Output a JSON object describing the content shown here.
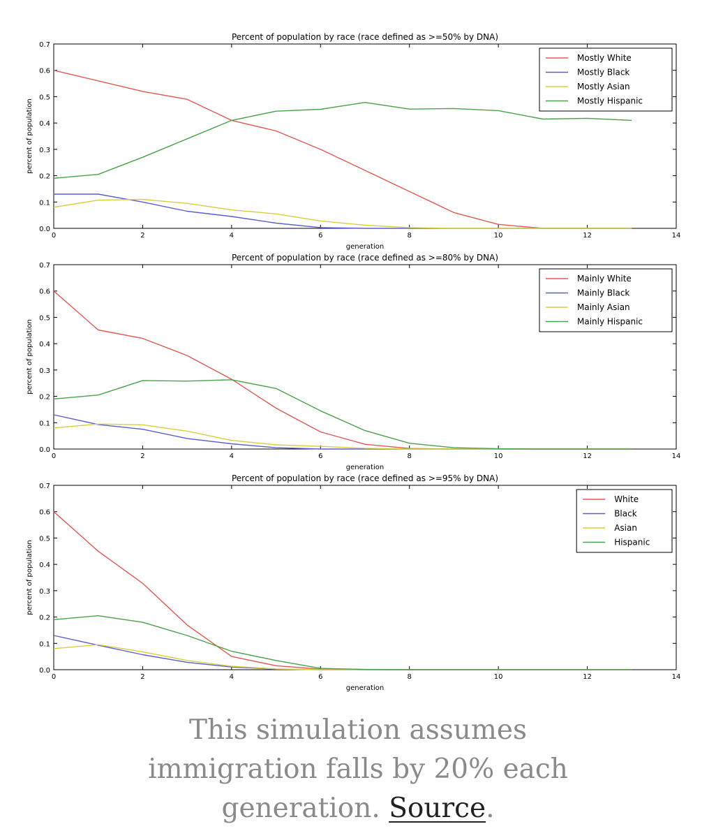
{
  "chart_data": [
    {
      "type": "line",
      "title": "Percent of population by race (race defined as >=50% by DNA)",
      "xlabel": "generation",
      "ylabel": "percent of population",
      "xlim": [
        0,
        14
      ],
      "ylim": [
        0,
        0.7
      ],
      "xticks": [
        "0",
        "2",
        "4",
        "6",
        "8",
        "10",
        "12",
        "14"
      ],
      "yticks": [
        "0.0",
        "0.1",
        "0.2",
        "0.3",
        "0.4",
        "0.5",
        "0.6",
        "0.7"
      ],
      "legend": "top-right",
      "grid": false,
      "x": [
        0,
        1,
        2,
        3,
        4,
        5,
        6,
        7,
        8,
        9,
        10,
        11,
        12,
        13
      ],
      "series": [
        {
          "name": "Mostly White",
          "color": "#e05a52",
          "values": [
            0.6,
            0.56,
            0.52,
            0.49,
            0.41,
            0.37,
            0.3,
            0.22,
            0.14,
            0.06,
            0.015,
            0.0,
            0.0,
            0.0
          ]
        },
        {
          "name": "Mostly Black",
          "color": "#5a5ecf",
          "values": [
            0.13,
            0.13,
            0.1,
            0.065,
            0.045,
            0.02,
            0.003,
            0.0,
            0.0,
            0.0,
            0.0,
            0.0,
            0.0,
            0.0
          ]
        },
        {
          "name": "Mostly Asian",
          "color": "#d9cf3e",
          "values": [
            0.08,
            0.107,
            0.11,
            0.095,
            0.07,
            0.055,
            0.028,
            0.012,
            0.003,
            0.0,
            0.0,
            0.0,
            0.0,
            0.0
          ]
        },
        {
          "name": "Mostly Hispanic",
          "color": "#4aa24a",
          "values": [
            0.19,
            0.205,
            0.27,
            0.34,
            0.41,
            0.445,
            0.452,
            0.478,
            0.453,
            0.455,
            0.447,
            0.415,
            0.418,
            0.41
          ]
        }
      ]
    },
    {
      "type": "line",
      "title": "Percent of population by race (race defined as >=80% by DNA)",
      "xlabel": "generation",
      "ylabel": "percent of population",
      "xlim": [
        0,
        14
      ],
      "ylim": [
        0,
        0.7
      ],
      "xticks": [
        "0",
        "2",
        "4",
        "6",
        "8",
        "10",
        "12",
        "14"
      ],
      "yticks": [
        "0.0",
        "0.1",
        "0.2",
        "0.3",
        "0.4",
        "0.5",
        "0.6",
        "0.7"
      ],
      "legend": "top-right",
      "grid": false,
      "x": [
        0,
        1,
        2,
        3,
        4,
        5,
        6,
        7,
        8,
        9,
        10,
        11,
        12,
        13
      ],
      "series": [
        {
          "name": "Mainly White",
          "color": "#e05a52",
          "values": [
            0.6,
            0.452,
            0.42,
            0.355,
            0.265,
            0.155,
            0.065,
            0.018,
            0.002,
            0.0,
            0.0,
            0.0,
            0.0,
            0.0
          ]
        },
        {
          "name": "Mainly Black",
          "color": "#5a5ecf",
          "values": [
            0.13,
            0.093,
            0.075,
            0.04,
            0.02,
            0.005,
            0.0,
            0.0,
            0.0,
            0.0,
            0.0,
            0.0,
            0.0,
            0.0
          ]
        },
        {
          "name": "Mainly Asian",
          "color": "#d9cf3e",
          "values": [
            0.08,
            0.095,
            0.092,
            0.068,
            0.033,
            0.016,
            0.01,
            0.003,
            0.0,
            0.0,
            0.0,
            0.0,
            0.0,
            0.0
          ]
        },
        {
          "name": "Mainly Hispanic",
          "color": "#4aa24a",
          "values": [
            0.19,
            0.205,
            0.26,
            0.258,
            0.263,
            0.23,
            0.145,
            0.07,
            0.022,
            0.005,
            0.001,
            0.0,
            0.0,
            0.0
          ]
        }
      ]
    },
    {
      "type": "line",
      "title": "Percent of population by race (race defined as >=95% by DNA)",
      "xlabel": "generation",
      "ylabel": "percent of population",
      "xlim": [
        0,
        14
      ],
      "ylim": [
        0,
        0.7
      ],
      "xticks": [
        "0",
        "2",
        "4",
        "6",
        "8",
        "10",
        "12",
        "14"
      ],
      "yticks": [
        "0.0",
        "0.1",
        "0.2",
        "0.3",
        "0.4",
        "0.5",
        "0.6",
        "0.7"
      ],
      "legend": "top-right",
      "grid": false,
      "x": [
        0,
        1,
        2,
        3,
        4,
        5,
        6,
        7,
        8,
        9,
        10,
        11,
        12,
        13
      ],
      "series": [
        {
          "name": "White",
          "color": "#e05a52",
          "values": [
            0.6,
            0.45,
            0.328,
            0.17,
            0.05,
            0.015,
            0.002,
            0.0,
            0.0,
            0.0,
            0.0,
            0.0,
            0.0,
            0.0
          ]
        },
        {
          "name": "Black",
          "color": "#5a5ecf",
          "values": [
            0.13,
            0.093,
            0.057,
            0.028,
            0.01,
            0.002,
            0.0,
            0.0,
            0.0,
            0.0,
            0.0,
            0.0,
            0.0,
            0.0
          ]
        },
        {
          "name": "Asian",
          "color": "#d9cf3e",
          "values": [
            0.08,
            0.095,
            0.068,
            0.035,
            0.013,
            0.003,
            0.0,
            0.0,
            0.0,
            0.0,
            0.0,
            0.0,
            0.0,
            0.0
          ]
        },
        {
          "name": "Hispanic",
          "color": "#4aa24a",
          "values": [
            0.19,
            0.205,
            0.18,
            0.13,
            0.07,
            0.035,
            0.005,
            0.001,
            0.0,
            0.0,
            0.0,
            0.0,
            0.0,
            0.0
          ]
        }
      ]
    }
  ],
  "caption": {
    "line1": "This simulation assumes",
    "line2": "immigration falls by 20% each",
    "line3_prefix": "generation. ",
    "link": "Source",
    "suffix": "."
  }
}
